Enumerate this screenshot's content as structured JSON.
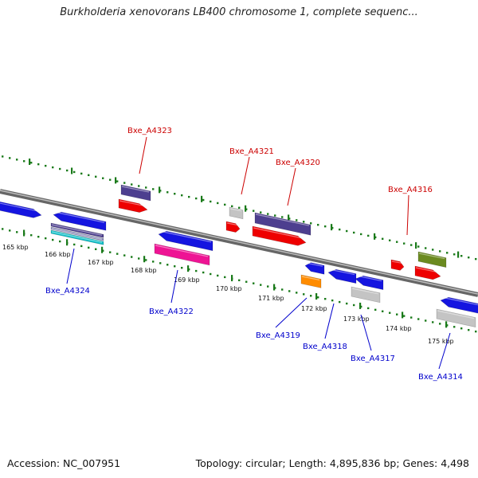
{
  "title": "Burkholderia xenovorans LB400 chromosome 1, complete sequenc...",
  "footer": {
    "accession": "Accession: NC_007951",
    "summary": "Topology: circular; Length: 4,895,836 bp; Genes: 4,498"
  },
  "scale_labels": [
    "165 kbp",
    "166 kbp",
    "167 kbp",
    "168 kbp",
    "169 kbp",
    "170 kbp",
    "171 kbp",
    "172 kbp",
    "173 kbp",
    "174 kbp",
    "175 kbp"
  ],
  "gene_labels": {
    "top": [
      "Bxe_A4323",
      "Bxe_A4321",
      "Bxe_A4320",
      "Bxe_A4316"
    ],
    "bottom": [
      "Bxe_A4324",
      "Bxe_A4322",
      "Bxe_A4319",
      "Bxe_A4318",
      "Bxe_A4317",
      "Bxe_A4314"
    ]
  },
  "colors": {
    "backbone": "#7a7a7a",
    "ticks": "#1a7a1a",
    "top_labels": "#cc0000",
    "bottom_labels": "#0000cc",
    "blue": "#1515e0",
    "red": "#ee0000",
    "purple": "#4d3f8f",
    "gray": "#c4c4c4",
    "olive": "#6b8a20",
    "orange": "#ff8c00",
    "magenta": "#ee1494",
    "cyan": "#10c0c8"
  }
}
